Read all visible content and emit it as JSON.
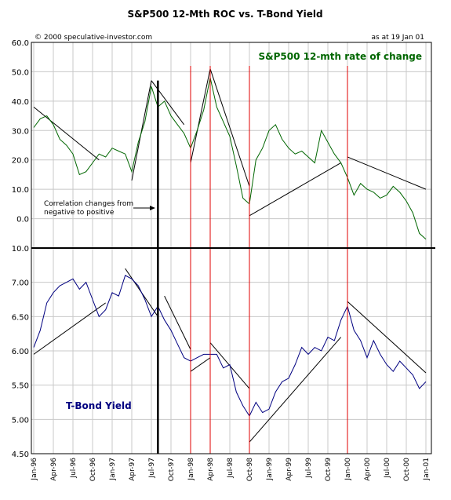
{
  "chart_data": {
    "type": "line",
    "title": "S&P500 12-Mth ROC vs. T-Bond Yield",
    "copyright": "© 2000 speculative-investor.com",
    "as_at": "as at 19 Jan 01",
    "annotation": [
      "Correlation changes from",
      "negative to positive"
    ],
    "x_tick_labels": [
      "Jan-96",
      "Apr-96",
      "Jul-96",
      "Oct-96",
      "Jan-97",
      "Apr-97",
      "Jul-97",
      "Oct-97",
      "Jan-98",
      "Apr-98",
      "Jul-98",
      "Oct-98",
      "Jan-99",
      "Apr-99",
      "Jul-99",
      "Oct-99",
      "Jan-00",
      "Apr-00",
      "Jul-00",
      "Oct-00",
      "Jan-01"
    ],
    "red_line_dates": [
      "1998-01",
      "1998-04",
      "1998-10",
      "2000-01"
    ],
    "black_line_date": "1997-08",
    "top_panel": {
      "series_name": "S&P500 12-mth rate of change",
      "color": "#006600",
      "ylim": [
        -10,
        60
      ],
      "y_tick_values": [
        60,
        50,
        40,
        30,
        20,
        10,
        0,
        -10
      ],
      "y_tick_labels": [
        "60.0",
        "50.0",
        "40.0",
        "30.0",
        "20.0",
        "10.0",
        "0.0",
        "10.0"
      ],
      "negative_tick_color": "#cc0000",
      "points": [
        [
          "1996-01",
          31
        ],
        [
          "1996-02",
          34
        ],
        [
          "1996-03",
          35
        ],
        [
          "1996-04",
          32
        ],
        [
          "1996-05",
          27
        ],
        [
          "1996-06",
          25
        ],
        [
          "1996-07",
          22
        ],
        [
          "1996-08",
          15
        ],
        [
          "1996-09",
          16
        ],
        [
          "1996-10",
          19
        ],
        [
          "1996-11",
          22
        ],
        [
          "1996-12",
          21
        ],
        [
          "1997-01",
          24
        ],
        [
          "1997-02",
          23
        ],
        [
          "1997-03",
          22
        ],
        [
          "1997-04",
          16
        ],
        [
          "1997-05",
          26
        ],
        [
          "1997-06",
          33
        ],
        [
          "1997-07",
          45
        ],
        [
          "1997-08",
          38
        ],
        [
          "1997-09",
          40
        ],
        [
          "1997-10",
          35
        ],
        [
          "1997-11",
          32
        ],
        [
          "1997-12",
          29
        ],
        [
          "1998-01",
          24
        ],
        [
          "1998-02",
          30
        ],
        [
          "1998-03",
          37
        ],
        [
          "1998-04",
          48
        ],
        [
          "1998-05",
          38
        ],
        [
          "1998-06",
          33
        ],
        [
          "1998-07",
          28
        ],
        [
          "1998-08",
          18
        ],
        [
          "1998-09",
          7
        ],
        [
          "1998-10",
          5
        ],
        [
          "1998-11",
          20
        ],
        [
          "1998-12",
          24
        ],
        [
          "1999-01",
          30
        ],
        [
          "1999-02",
          32
        ],
        [
          "1999-03",
          27
        ],
        [
          "1999-04",
          24
        ],
        [
          "1999-05",
          22
        ],
        [
          "1999-06",
          23
        ],
        [
          "1999-07",
          21
        ],
        [
          "1999-08",
          19
        ],
        [
          "1999-09",
          30
        ],
        [
          "1999-10",
          26
        ],
        [
          "1999-11",
          22
        ],
        [
          "1999-12",
          19
        ],
        [
          "2000-01",
          14
        ],
        [
          "2000-02",
          8
        ],
        [
          "2000-03",
          12
        ],
        [
          "2000-04",
          10
        ],
        [
          "2000-05",
          9
        ],
        [
          "2000-06",
          7
        ],
        [
          "2000-07",
          8
        ],
        [
          "2000-08",
          11
        ],
        [
          "2000-09",
          9
        ],
        [
          "2000-10",
          6
        ],
        [
          "2000-11",
          2
        ],
        [
          "2000-12",
          -5
        ],
        [
          "2001-01",
          -7
        ]
      ],
      "trend_lines": [
        [
          [
            "1996-01",
            38
          ],
          [
            "1996-11",
            20
          ]
        ],
        [
          [
            "1997-04",
            13
          ],
          [
            "1997-07",
            47
          ]
        ],
        [
          [
            "1997-07",
            47
          ],
          [
            "1997-12",
            32
          ]
        ],
        [
          [
            "1998-01",
            19
          ],
          [
            "1998-04",
            51
          ]
        ],
        [
          [
            "1998-04",
            51
          ],
          [
            "1998-10",
            11
          ]
        ],
        [
          [
            "1998-10",
            1
          ],
          [
            "1999-12",
            19
          ]
        ],
        [
          [
            "2000-01",
            21
          ],
          [
            "2001-01",
            10
          ]
        ]
      ]
    },
    "bottom_panel": {
      "series_name": "T-Bond Yield",
      "color": "#000080",
      "ylim": [
        4.5,
        7.5
      ],
      "y_tick_values": [
        7.0,
        6.5,
        6.0,
        5.5,
        5.0,
        4.5
      ],
      "y_tick_labels": [
        "7.00",
        "6.50",
        "6.00",
        "5.50",
        "5.00",
        "4.50"
      ],
      "points": [
        [
          "1996-01",
          6.05
        ],
        [
          "1996-02",
          6.3
        ],
        [
          "1996-03",
          6.7
        ],
        [
          "1996-04",
          6.85
        ],
        [
          "1996-05",
          6.95
        ],
        [
          "1996-06",
          7.0
        ],
        [
          "1996-07",
          7.05
        ],
        [
          "1996-08",
          6.9
        ],
        [
          "1996-09",
          7.0
        ],
        [
          "1996-10",
          6.75
        ],
        [
          "1996-11",
          6.5
        ],
        [
          "1996-12",
          6.6
        ],
        [
          "1997-01",
          6.85
        ],
        [
          "1997-02",
          6.8
        ],
        [
          "1997-03",
          7.1
        ],
        [
          "1997-04",
          7.05
        ],
        [
          "1997-05",
          6.95
        ],
        [
          "1997-06",
          6.75
        ],
        [
          "1997-07",
          6.5
        ],
        [
          "1997-08",
          6.65
        ],
        [
          "1997-09",
          6.45
        ],
        [
          "1997-10",
          6.3
        ],
        [
          "1997-11",
          6.1
        ],
        [
          "1997-12",
          5.9
        ],
        [
          "1998-01",
          5.85
        ],
        [
          "1998-02",
          5.9
        ],
        [
          "1998-03",
          5.95
        ],
        [
          "1998-04",
          5.95
        ],
        [
          "1998-05",
          5.95
        ],
        [
          "1998-06",
          5.75
        ],
        [
          "1998-07",
          5.8
        ],
        [
          "1998-08",
          5.4
        ],
        [
          "1998-09",
          5.2
        ],
        [
          "1998-10",
          5.05
        ],
        [
          "1998-11",
          5.25
        ],
        [
          "1998-12",
          5.1
        ],
        [
          "1999-01",
          5.15
        ],
        [
          "1999-02",
          5.4
        ],
        [
          "1999-03",
          5.55
        ],
        [
          "1999-04",
          5.6
        ],
        [
          "1999-05",
          5.8
        ],
        [
          "1999-06",
          6.05
        ],
        [
          "1999-07",
          5.95
        ],
        [
          "1999-08",
          6.05
        ],
        [
          "1999-09",
          6.0
        ],
        [
          "1999-10",
          6.2
        ],
        [
          "1999-11",
          6.15
        ],
        [
          "1999-12",
          6.45
        ],
        [
          "2000-01",
          6.65
        ],
        [
          "2000-02",
          6.3
        ],
        [
          "2000-03",
          6.15
        ],
        [
          "2000-04",
          5.9
        ],
        [
          "2000-05",
          6.15
        ],
        [
          "2000-06",
          5.95
        ],
        [
          "2000-07",
          5.8
        ],
        [
          "2000-08",
          5.7
        ],
        [
          "2000-09",
          5.85
        ],
        [
          "2000-10",
          5.75
        ],
        [
          "2000-11",
          5.65
        ],
        [
          "2000-12",
          5.45
        ],
        [
          "2001-01",
          5.55
        ]
      ],
      "trend_lines": [
        [
          [
            "1996-01",
            5.95
          ],
          [
            "1996-12",
            6.7
          ]
        ],
        [
          [
            "1997-03",
            7.2
          ],
          [
            "1997-08",
            6.5
          ]
        ],
        [
          [
            "1997-09",
            6.8
          ],
          [
            "1998-01",
            6.02
          ]
        ],
        [
          [
            "1998-01",
            5.7
          ],
          [
            "1998-04",
            5.9
          ]
        ],
        [
          [
            "1998-04",
            6.12
          ],
          [
            "1998-10",
            5.45
          ]
        ],
        [
          [
            "1998-10",
            4.67
          ],
          [
            "1999-12",
            6.2
          ]
        ],
        [
          [
            "2000-01",
            6.72
          ],
          [
            "2001-01",
            5.68
          ]
        ]
      ]
    }
  }
}
